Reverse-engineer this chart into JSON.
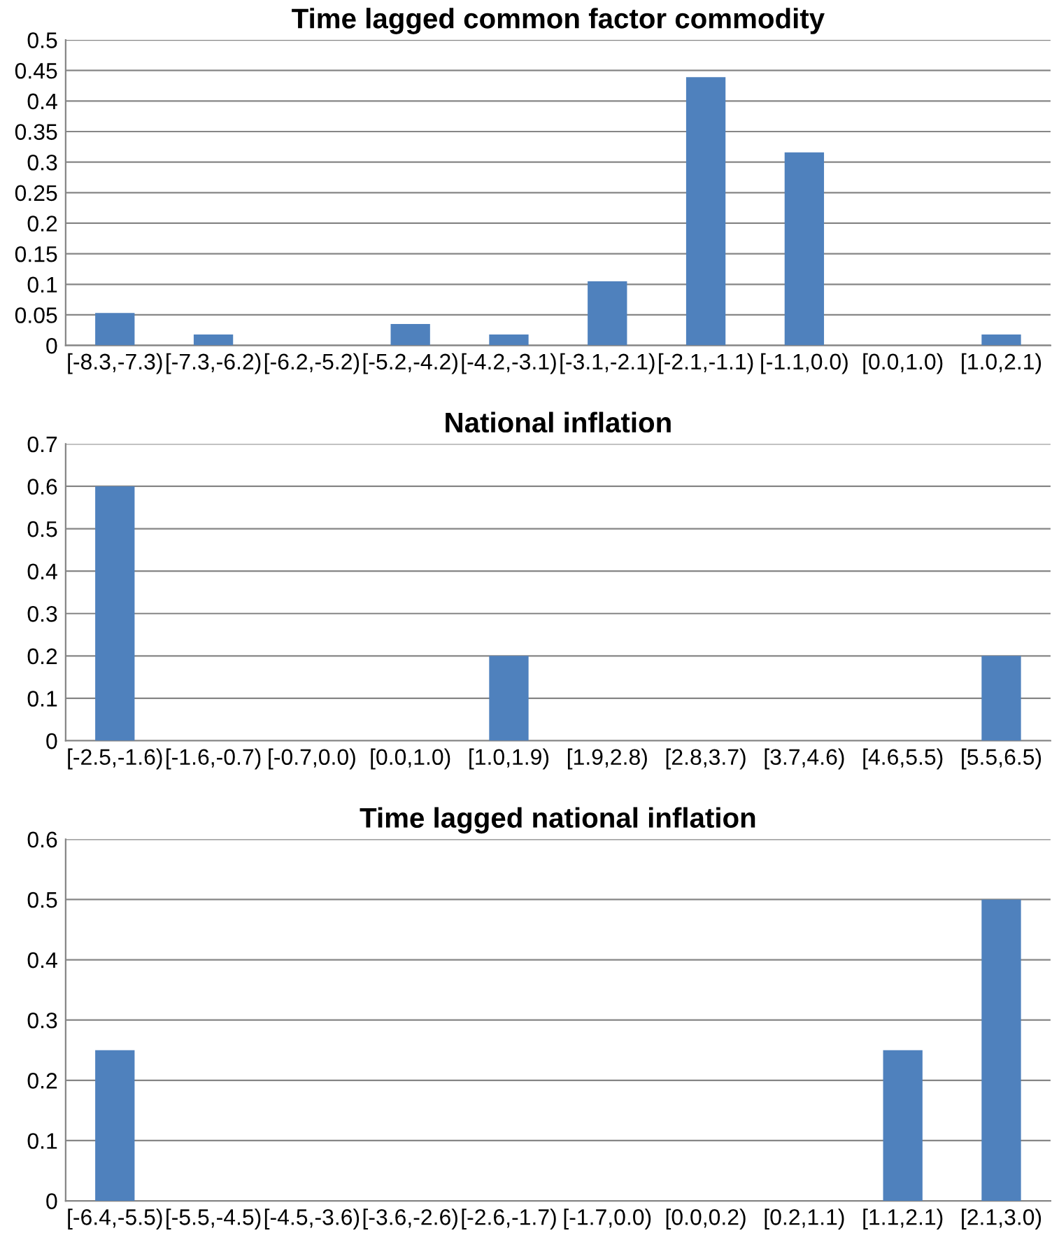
{
  "chart_data": [
    {
      "type": "bar",
      "title": "Time lagged common factor commodity",
      "categories": [
        "[-8.3,-7.3)",
        "[-7.3,-6.2)",
        "[-6.2,-5.2)",
        "[-5.2,-4.2)",
        "[-4.2,-3.1)",
        "[-3.1,-2.1)",
        "[-2.1,-1.1)",
        "[-1.1,0.0)",
        "[0.0,1.0)",
        "[1.0,2.1)"
      ],
      "values": [
        0.053,
        0.018,
        0,
        0.035,
        0.018,
        0.105,
        0.439,
        0.316,
        0,
        0.018
      ],
      "color": "#4f81bd",
      "ylim": [
        0,
        0.5
      ],
      "yticks": [
        {
          "value": 0,
          "label": "0"
        },
        {
          "value": 0.05,
          "label": "0.05"
        },
        {
          "value": 0.1,
          "label": "0.1"
        },
        {
          "value": 0.15,
          "label": "0.15"
        },
        {
          "value": 0.2,
          "label": "0.2"
        },
        {
          "value": 0.25,
          "label": "0.25"
        },
        {
          "value": 0.3,
          "label": "0.3"
        },
        {
          "value": 0.35,
          "label": "0.35"
        },
        {
          "value": 0.4,
          "label": "0.4"
        },
        {
          "value": 0.45,
          "label": "0.45"
        },
        {
          "value": 0.5,
          "label": "0.5"
        }
      ],
      "grid": "y"
    },
    {
      "type": "bar",
      "title": "National inflation",
      "categories": [
        "[-2.5,-1.6)",
        "[-1.6,-0.7)",
        "[-0.7,0.0)",
        "[0.0,1.0)",
        "[1.0,1.9)",
        "[1.9,2.8)",
        "[2.8,3.7)",
        "[3.7,4.6)",
        "[4.6,5.5)",
        "[5.5,6.5)"
      ],
      "values": [
        0.6,
        0,
        0,
        0,
        0.2,
        0,
        0,
        0,
        0,
        0.2
      ],
      "color": "#4f81bd",
      "ylim": [
        0,
        0.7
      ],
      "yticks": [
        {
          "value": 0,
          "label": "0"
        },
        {
          "value": 0.1,
          "label": "0.1"
        },
        {
          "value": 0.2,
          "label": "0.2"
        },
        {
          "value": 0.3,
          "label": "0.3"
        },
        {
          "value": 0.4,
          "label": "0.4"
        },
        {
          "value": 0.5,
          "label": "0.5"
        },
        {
          "value": 0.6,
          "label": "0.6"
        },
        {
          "value": 0.7,
          "label": "0.7"
        }
      ],
      "grid": "y"
    },
    {
      "type": "bar",
      "title": "Time lagged national inflation",
      "categories": [
        "[-6.4,-5.5)",
        "[-5.5,-4.5)",
        "[-4.5,-3.6)",
        "[-3.6,-2.6)",
        "[-2.6,-1.7)",
        "[-1.7,0.0)",
        "[0.0,0.2)",
        "[0.2,1.1)",
        "[1.1,2.1)",
        "[2.1,3.0)"
      ],
      "values": [
        0.25,
        0,
        0,
        0,
        0,
        0,
        0,
        0,
        0.25,
        0.5
      ],
      "color": "#4f81bd",
      "ylim": [
        0,
        0.6
      ],
      "yticks": [
        {
          "value": 0,
          "label": "0"
        },
        {
          "value": 0.1,
          "label": "0.1"
        },
        {
          "value": 0.2,
          "label": "0.2"
        },
        {
          "value": 0.3,
          "label": "0.3"
        },
        {
          "value": 0.4,
          "label": "0.4"
        },
        {
          "value": 0.5,
          "label": "0.5"
        },
        {
          "value": 0.6,
          "label": "0.6"
        }
      ],
      "grid": "y"
    }
  ]
}
